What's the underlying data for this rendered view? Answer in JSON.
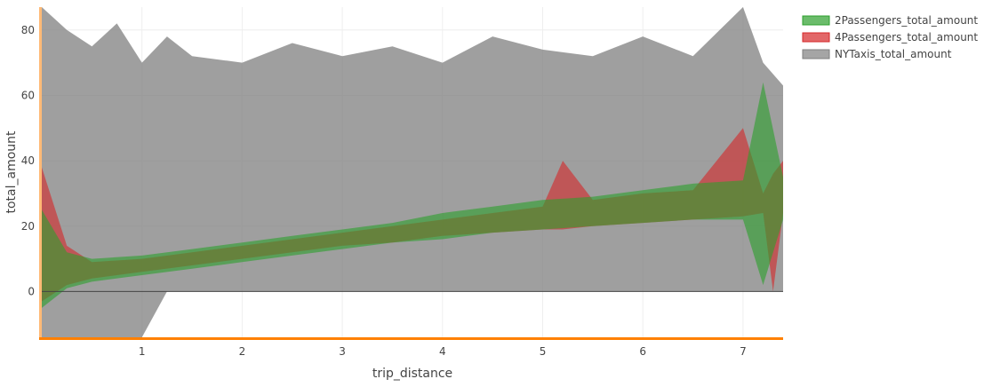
{
  "chart_data": {
    "type": "area",
    "xlabel": "trip_distance",
    "ylabel": "total_amount",
    "xlim": [
      0,
      7.4
    ],
    "ylim": [
      -14,
      87
    ],
    "x_ticks": [
      1,
      2,
      3,
      4,
      5,
      6,
      7
    ],
    "y_ticks": [
      0,
      20,
      40,
      60,
      80
    ],
    "grid": true,
    "legend_position": "top-right",
    "series": [
      {
        "name": "2Passengers_total_amount",
        "color": "#2ca02c",
        "x": [
          0.0,
          0.25,
          0.5,
          1.0,
          1.5,
          2.0,
          2.5,
          3.0,
          3.5,
          4.0,
          4.5,
          5.0,
          5.5,
          6.0,
          6.5,
          7.0,
          7.2,
          7.4
        ],
        "lower": [
          -5,
          1,
          3,
          5,
          7,
          9,
          11,
          13,
          15,
          16,
          18,
          19,
          20,
          21,
          22,
          22,
          2,
          22
        ],
        "upper": [
          25,
          12,
          10,
          11,
          13,
          15,
          17,
          19,
          21,
          24,
          26,
          28,
          29,
          31,
          33,
          34,
          64,
          35
        ]
      },
      {
        "name": "4Passengers_total_amount",
        "color": "#d62728",
        "x": [
          0.0,
          0.25,
          0.5,
          1.0,
          1.5,
          2.0,
          2.5,
          3.0,
          3.5,
          4.0,
          4.5,
          5.0,
          5.2,
          5.5,
          6.0,
          6.5,
          7.0,
          7.2,
          7.3,
          7.4
        ],
        "lower": [
          -3,
          2,
          4,
          6,
          8,
          10,
          12,
          14,
          15,
          17,
          18,
          19,
          19,
          20,
          21,
          22,
          23,
          24,
          0,
          24
        ],
        "upper": [
          38,
          14,
          9,
          10,
          12,
          14,
          16,
          18,
          20,
          22,
          24,
          26,
          40,
          28,
          30,
          31,
          50,
          30,
          36,
          40
        ]
      },
      {
        "name": "NYTaxis_total_amount",
        "color": "#7f7f7f",
        "x": [
          0.0,
          0.25,
          0.5,
          0.75,
          1.0,
          1.25,
          1.5,
          2.0,
          2.5,
          3.0,
          3.5,
          4.0,
          4.5,
          5.0,
          5.5,
          6.0,
          6.5,
          7.0,
          7.2,
          7.4
        ],
        "lower": [
          -14,
          -14,
          -14,
          -14,
          -14,
          0,
          0,
          0,
          0,
          0,
          0,
          0,
          0,
          0,
          0,
          0,
          0,
          0,
          0,
          0
        ],
        "upper": [
          87,
          80,
          75,
          82,
          70,
          78,
          72,
          70,
          76,
          72,
          75,
          70,
          78,
          74,
          72,
          78,
          72,
          87,
          70,
          63
        ]
      }
    ]
  }
}
